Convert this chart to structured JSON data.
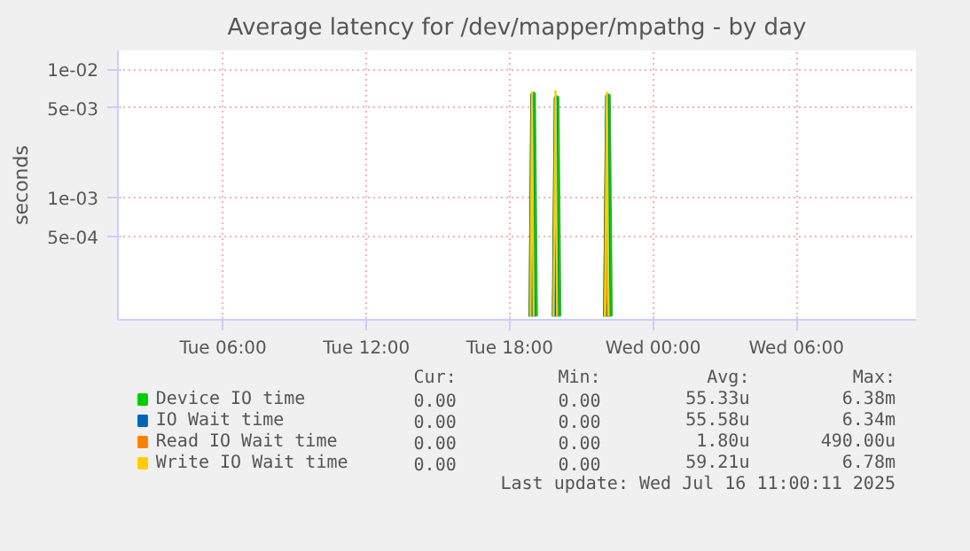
{
  "chart_data": {
    "type": "line",
    "title": "Average latency for /dev/mapper/mpathg - by day",
    "ylabel": "seconds",
    "log": "y",
    "grid": true,
    "legend": "bottom",
    "marker": "none",
    "line_style": "solid",
    "xlim": [
      "2025-07-15T01:36",
      "2025-07-16T11:00"
    ],
    "xticks": [
      {
        "value": "2025-07-15T06:00",
        "label": "Tue 06:00"
      },
      {
        "value": "2025-07-15T12:00",
        "label": "Tue 12:00"
      },
      {
        "value": "2025-07-15T18:00",
        "label": "Tue 18:00"
      },
      {
        "value": "2025-07-16T00:00",
        "label": "Wed 00:00"
      },
      {
        "value": "2025-07-16T06:00",
        "label": "Wed 06:00"
      }
    ],
    "ylim": [
      0.000113,
      0.014
    ],
    "yticks": [
      {
        "value": 0.01,
        "label": "1e-02"
      },
      {
        "value": 0.005,
        "label": "5e-03"
      },
      {
        "value": 0.001,
        "label": "1e-03"
      },
      {
        "value": 0.0005,
        "label": "5e-04"
      }
    ],
    "series": [
      {
        "name": "Device IO time",
        "color": "#00cc00",
        "x": [
          "2025-07-15T18:54",
          "2025-07-15T18:59",
          "2025-07-15T19:04",
          "2025-07-15T19:25",
          "2025-07-15T19:53",
          "2025-07-15T19:58",
          "2025-07-15T20:03",
          "2025-07-15T21:00",
          "2025-07-15T22:01",
          "2025-07-15T22:07",
          "2025-07-15T22:12"
        ],
        "values": [
          0.00012,
          0.00638,
          0.00012,
          null,
          0.00012,
          0.006,
          0.00012,
          null,
          0.00012,
          0.0062,
          0.00012
        ]
      },
      {
        "name": "IO Wait time",
        "color": "#0066b3",
        "x": [
          "2025-07-15T18:52",
          "2025-07-15T18:56",
          "2025-07-15T18:59",
          "2025-07-15T19:00",
          "2025-07-15T19:25",
          "2025-07-15T19:50",
          "2025-07-15T19:55",
          "2025-07-15T19:59",
          "2025-07-15T21:00",
          "2025-07-15T21:59",
          "2025-07-15T22:04",
          "2025-07-15T22:08"
        ],
        "values": [
          0.00012,
          0.00634,
          0.00023,
          0.00012,
          null,
          0.00012,
          0.006,
          0.00012,
          null,
          0.00012,
          0.0062,
          0.00012
        ]
      },
      {
        "name": "Read IO Wait time",
        "color": "#ff8000",
        "x": [
          "2025-07-15T21:59",
          "2025-07-15T22:04",
          "2025-07-15T22:08"
        ],
        "values": [
          0.00012,
          0.00049,
          0.00012
        ]
      },
      {
        "name": "Write IO Wait time",
        "color": "#ffcc00",
        "x": [
          "2025-07-15T18:52",
          "2025-07-15T18:56",
          "2025-07-15T19:00",
          "2025-07-15T19:25",
          "2025-07-15T19:50",
          "2025-07-15T19:55",
          "2025-07-15T19:59",
          "2025-07-15T21:00",
          "2025-07-15T21:59",
          "2025-07-15T22:04",
          "2025-07-15T22:08"
        ],
        "values": [
          0.00012,
          0.0066,
          0.00012,
          null,
          0.00012,
          0.00678,
          0.00012,
          null,
          0.00012,
          0.0066,
          0.00012
        ]
      }
    ],
    "annotations": [
      "Cur:",
      "Min:",
      "Avg:",
      "Max:",
      "0.00",
      "0.00",
      "55.33u",
      "6.38m",
      "0.00",
      "0.00",
      "55.58u",
      "6.34m",
      "0.00",
      "0.00",
      "1.80u",
      "490.00u",
      "0.00",
      "0.00",
      "59.21u",
      "6.78m",
      "Last update: Wed Jul 16 11:00:11 2025"
    ]
  }
}
